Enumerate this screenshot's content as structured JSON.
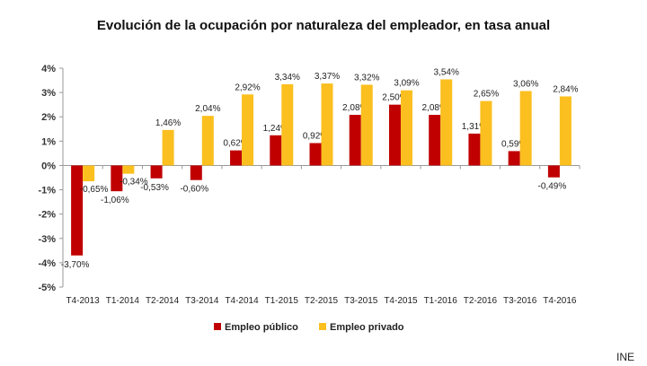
{
  "chart_data": {
    "type": "bar",
    "title": "Evolución de la ocupación por naturaleza del empleador, en tasa anual",
    "xlabel": "",
    "ylabel": "",
    "ylim": [
      -5,
      4
    ],
    "yticks": [
      "-5%",
      "-4%",
      "-3%",
      "-2%",
      "-1%",
      "0%",
      "1%",
      "2%",
      "3%",
      "4%"
    ],
    "legend_position": "bottom",
    "categories": [
      "T4-2013",
      "T1-2014",
      "T2-2014",
      "T3-2014",
      "T4-2014",
      "T1-2015",
      "T2-2015",
      "T3-2015",
      "T4-2015",
      "T1-2016",
      "T2-2016",
      "T3-2016",
      "T4-2016"
    ],
    "series": [
      {
        "name": "Empleo público",
        "color": "#c00000",
        "values": [
          -3.7,
          -1.06,
          -0.53,
          -0.6,
          0.62,
          1.24,
          0.92,
          2.08,
          2.5,
          2.08,
          1.31,
          0.59,
          -0.49
        ],
        "labels": [
          "-3,70%",
          "-1,06%",
          "-0,53%",
          "-0,60%",
          "0,62%",
          "1,24%",
          "0,92%",
          "2,08%",
          "2,50%",
          "2,08%",
          "1,31%",
          "0,59%",
          "-0,49%"
        ]
      },
      {
        "name": "Empleo privado",
        "color": "#fbbf1f",
        "values": [
          -0.65,
          -0.34,
          1.46,
          2.04,
          2.92,
          3.34,
          3.37,
          3.32,
          3.09,
          3.54,
          2.65,
          3.06,
          2.84
        ],
        "labels": [
          "-0,65%",
          "-0,34%",
          "1,46%",
          "2,04%",
          "2,92%",
          "3,34%",
          "3,37%",
          "3,32%",
          "3,09%",
          "3,54%",
          "2,65%",
          "3,06%",
          "2,84%"
        ]
      }
    ]
  },
  "source": "INE"
}
